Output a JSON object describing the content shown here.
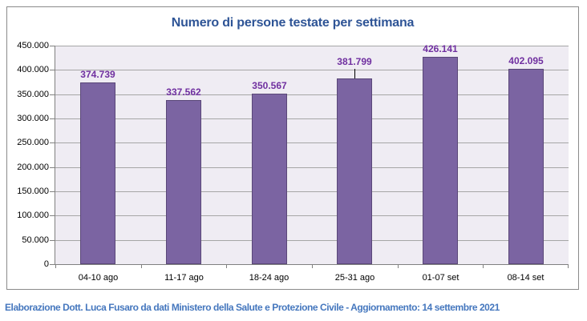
{
  "chart_data": {
    "type": "bar",
    "title": "Numero di persone testate per settimana",
    "categories": [
      "04-10 ago",
      "11-17 ago",
      "18-24 ago",
      "25-31 ago",
      "01-07 set",
      "08-14 set"
    ],
    "values": [
      374739,
      337562,
      350567,
      381799,
      426141,
      402095
    ],
    "value_labels": [
      "374.739",
      "337.562",
      "350.567",
      "381.799",
      "426.141",
      "402.095"
    ],
    "ylim": [
      0,
      450000
    ],
    "y_tick_step": 50000,
    "y_tick_labels": [
      "450.000",
      "400.000",
      "350.000",
      "300.000",
      "250.000",
      "200.000",
      "150.000",
      "100.000",
      "50.000",
      "0"
    ],
    "grid": true,
    "legend_position": "none",
    "callout_leader_index": 3,
    "colors": {
      "bar_fill": "#7B64A2",
      "bar_border": "#5A4778",
      "plot_background": "#EFECF3",
      "gridline": "#A6A6A6",
      "axis_line": "#808080",
      "value_label": "#7030A0",
      "title": "#2E5496",
      "axis_text": "#000000",
      "frame_border": "#8A8A8A",
      "footer_text": "#4577BE"
    }
  },
  "footer": {
    "text": "Elaborazione Dott. Luca Fusaro da dati Ministero della Salute e Protezione Civile - Aggiornamento: 14 settembre 2021"
  }
}
